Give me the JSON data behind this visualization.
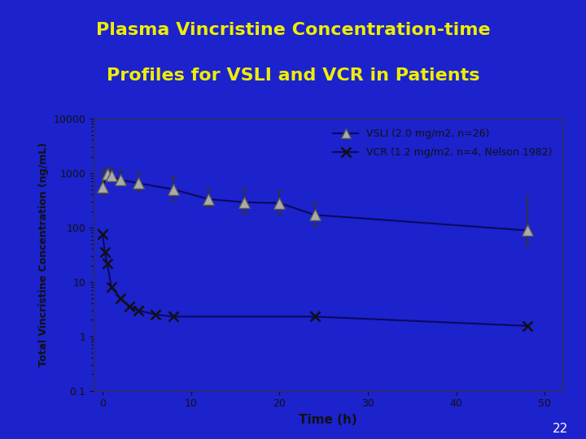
{
  "title_line1": "Plasma Vincristine Concentration-time",
  "title_line2": "Profiles for VSLI and VCR in Patients",
  "title_color": "#EEEE00",
  "background_color": "#1C22CC",
  "plot_bg_color": "#1C22CC",
  "xlabel": "Time (h)",
  "ylabel": "Total Vincristine Concentration (ng/mL)",
  "tick_color": "#111111",
  "spine_color": "#111111",
  "separator_color": "#EEEE00",
  "page_number": "22",
  "vsli_x": [
    0,
    0.5,
    1,
    2,
    4,
    8,
    12,
    16,
    20,
    24,
    48
  ],
  "vsli_y": [
    550,
    950,
    900,
    750,
    650,
    500,
    330,
    290,
    280,
    170,
    88
  ],
  "vsli_yerr_low": [
    150,
    100,
    100,
    150,
    180,
    180,
    90,
    110,
    100,
    60,
    40
  ],
  "vsli_yerr_high": [
    600,
    300,
    300,
    350,
    350,
    350,
    200,
    250,
    180,
    120,
    280
  ],
  "vcr_x": [
    0,
    0.25,
    0.5,
    1,
    2,
    3,
    4,
    6,
    8,
    24,
    48
  ],
  "vcr_y": [
    75,
    35,
    22,
    8,
    5,
    3.5,
    3,
    2.5,
    2.3,
    2.3,
    1.55
  ],
  "legend_vsli": "VSLI (2.0 mg/m2, n=26)",
  "legend_vcr": "VCR (1.2 mg/m2, n=4, Nelson 1982)",
  "xlim": [
    -1,
    52
  ],
  "ylim_log": [
    0.1,
    10000
  ],
  "xticks": [
    0,
    10,
    20,
    30,
    40,
    50
  ],
  "ytick_vals": [
    0.1,
    1,
    10,
    100,
    1000,
    10000
  ],
  "ytick_labels": [
    "0.1",
    "1",
    "10",
    "100",
    "1000",
    "10000"
  ]
}
